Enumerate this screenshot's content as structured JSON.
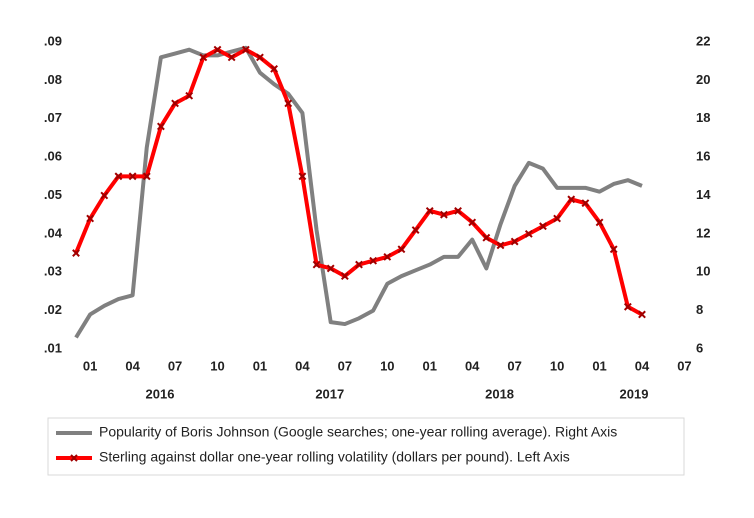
{
  "chart_data": {
    "type": "line",
    "categories": [
      null,
      "01",
      null,
      null,
      "04",
      null,
      null,
      "07",
      null,
      null,
      "10",
      null,
      null,
      "01",
      null,
      null,
      "04",
      null,
      null,
      "07",
      null,
      null,
      "10",
      null,
      null,
      "01",
      null,
      null,
      "04",
      null,
      null,
      "07",
      null,
      null,
      "10",
      null,
      null,
      "01",
      null,
      null,
      "04",
      null,
      null,
      "07"
    ],
    "years": [
      "2016",
      "2017",
      "2018",
      "2019"
    ],
    "series": [
      {
        "name": "Popularity of Boris Johnson (Google searches; one-year rolling average). Right Axis",
        "color": "#808080",
        "axis": "y2",
        "values": [
          6.6,
          7.8,
          8.25,
          8.6,
          8.8,
          16.5,
          21.2,
          21.4,
          21.6,
          21.3,
          21.3,
          21.5,
          21.7,
          20.4,
          19.8,
          19.3,
          18.3,
          12.2,
          7.4,
          7.3,
          7.6,
          8.0,
          9.4,
          9.8,
          10.1,
          10.4,
          10.8,
          10.8,
          11.7,
          10.2,
          12.5,
          14.5,
          15.7,
          15.4,
          14.4,
          14.4,
          14.4,
          14.2,
          14.6,
          14.8,
          14.5,
          null,
          null,
          null
        ]
      },
      {
        "name": "Sterling against dollar one-year rolling volatility (dollars per pound). Left Axis",
        "color": "#ff0000",
        "marker_color": "#a00000",
        "marker": "x",
        "values": [
          0.035,
          0.044,
          0.05,
          0.055,
          0.055,
          0.055,
          0.068,
          0.074,
          0.076,
          0.086,
          0.088,
          0.086,
          0.088,
          0.086,
          0.083,
          0.074,
          0.055,
          0.032,
          0.031,
          0.029,
          0.032,
          0.033,
          0.034,
          0.036,
          0.041,
          0.046,
          0.045,
          0.046,
          0.043,
          0.039,
          0.037,
          0.038,
          0.04,
          0.042,
          0.044,
          0.049,
          0.048,
          0.043,
          0.036,
          0.021,
          0.019,
          null,
          null,
          null
        ]
      }
    ],
    "ylim": [
      0.01,
      0.09
    ],
    "yticks": [
      {
        "value": 0.01,
        "label": ".01"
      },
      {
        "value": 0.02,
        "label": ".02"
      },
      {
        "value": 0.03,
        "label": ".03"
      },
      {
        "value": 0.04,
        "label": ".04"
      },
      {
        "value": 0.05,
        "label": ".05"
      },
      {
        "value": 0.06,
        "label": ".06"
      },
      {
        "value": 0.07,
        "label": ".07"
      },
      {
        "value": 0.08,
        "label": ".08"
      },
      {
        "value": 0.09,
        "label": ".09"
      }
    ],
    "y2lim": [
      6,
      22
    ],
    "y2ticks": [
      6,
      8,
      10,
      12,
      14,
      16,
      18,
      20,
      22
    ],
    "legend": "bottom"
  }
}
